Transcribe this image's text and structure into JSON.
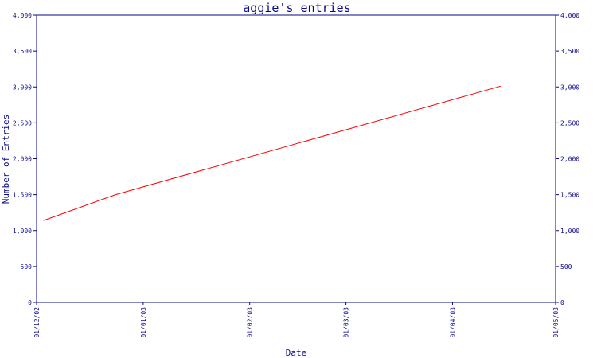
{
  "chart_data": {
    "type": "line",
    "title": "aggie's entries",
    "xlabel": "Date",
    "ylabel": "Number of Entries",
    "ylim": [
      0,
      4000
    ],
    "y_ticks": [
      0,
      500,
      1000,
      1500,
      2000,
      2500,
      3000,
      3500,
      4000
    ],
    "y_tick_labels": [
      "0",
      "500",
      "1,000",
      "1,500",
      "2,000",
      "2,500",
      "3,000",
      "3,500",
      "4,000"
    ],
    "x_ticks": [
      "2002-12-01",
      "2003-01-01",
      "2003-02-01",
      "2003-03-01",
      "2003-04-01",
      "2003-05-01"
    ],
    "x_tick_labels": [
      "01/12/02",
      "01/01/03",
      "01/02/03",
      "01/03/03",
      "01/04/03",
      "01/05/03"
    ],
    "xlim": [
      "2002-12-01",
      "2003-05-01"
    ],
    "right_axis": true,
    "grid": false,
    "colors": {
      "series": "#ff0000",
      "axes": "#0a0a8a",
      "background": "#ffffff"
    },
    "series": [
      {
        "points": [
          {
            "x": "2002-12-03",
            "y": 1140
          },
          {
            "x": "2002-12-24",
            "y": 1500
          },
          {
            "x": "2003-04-15",
            "y": 3010
          }
        ]
      }
    ]
  }
}
